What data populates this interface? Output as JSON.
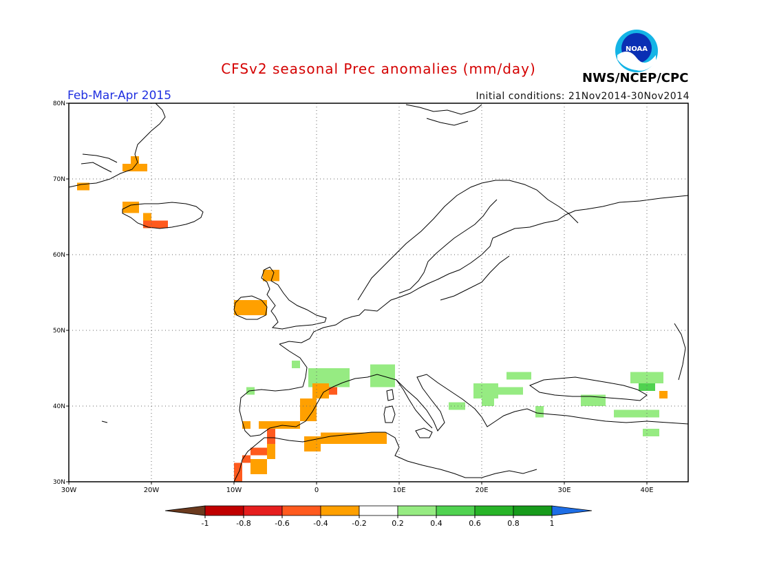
{
  "title": "CFSv2 seasonal Prec anomalies (mm/day)",
  "season": "Feb-Mar-Apr 2015",
  "initial_conditions": "Initial conditions: 21Nov2014-30Nov2014",
  "agency": "NWS/NCEP/CPC",
  "logo_text": "NOAA",
  "map": {
    "lon_range": [
      -30,
      45
    ],
    "lat_range": [
      30,
      80
    ],
    "x_ticks": [
      {
        "v": -30,
        "label": "30W"
      },
      {
        "v": -20,
        "label": "20W"
      },
      {
        "v": -10,
        "label": "10W"
      },
      {
        "v": 0,
        "label": "0"
      },
      {
        "v": 10,
        "label": "10E"
      },
      {
        "v": 20,
        "label": "20E"
      },
      {
        "v": 30,
        "label": "30E"
      },
      {
        "v": 40,
        "label": "40E"
      }
    ],
    "y_ticks": [
      {
        "v": 30,
        "label": "30N"
      },
      {
        "v": 40,
        "label": "40N"
      },
      {
        "v": 50,
        "label": "50N"
      },
      {
        "v": 60,
        "label": "60N"
      },
      {
        "v": 70,
        "label": "70N"
      },
      {
        "v": 80,
        "label": "80N"
      }
    ],
    "grid": true
  },
  "colorbar": {
    "labels": [
      "-1",
      "-0.8",
      "-0.6",
      "-0.4",
      "-0.2",
      "0.2",
      "0.4",
      "0.6",
      "0.8",
      "1"
    ],
    "colors": [
      "#6b3a1e",
      "#c00000",
      "#e61e1e",
      "#ff5a1e",
      "#ffa000",
      "#ffffff",
      "#96eb82",
      "#50d250",
      "#28b428",
      "#179b1b",
      "#1e6ee6"
    ]
  },
  "anomalies": [
    {
      "lon": -29,
      "lat": 68.5,
      "w": 1.5,
      "h": 1,
      "c": "#ffa000"
    },
    {
      "lon": -23.5,
      "lat": 71,
      "w": 3,
      "h": 1,
      "c": "#ffa000"
    },
    {
      "lon": -22.5,
      "lat": 72,
      "w": 1,
      "h": 1,
      "c": "#ffa000"
    },
    {
      "lon": -23.5,
      "lat": 65.5,
      "w": 2,
      "h": 1.5,
      "c": "#ffa000"
    },
    {
      "lon": -21,
      "lat": 64.5,
      "w": 1,
      "h": 1,
      "c": "#ffa000"
    },
    {
      "lon": -21,
      "lat": 63.5,
      "w": 3,
      "h": 1,
      "c": "#ff5a1e"
    },
    {
      "lon": -6.5,
      "lat": 56.5,
      "w": 2,
      "h": 1.5,
      "c": "#ffa000"
    },
    {
      "lon": -10,
      "lat": 52,
      "w": 4,
      "h": 2,
      "c": "#ffa000"
    },
    {
      "lon": -3,
      "lat": 45,
      "w": 1,
      "h": 1,
      "c": "#96eb82"
    },
    {
      "lon": -1,
      "lat": 42.5,
      "w": 5,
      "h": 2.5,
      "c": "#96eb82"
    },
    {
      "lon": 6.5,
      "lat": 42.5,
      "w": 3,
      "h": 3,
      "c": "#96eb82"
    },
    {
      "lon": -8.5,
      "lat": 41.5,
      "w": 1,
      "h": 1,
      "c": "#96eb82"
    },
    {
      "lon": -2,
      "lat": 38,
      "w": 2,
      "h": 3,
      "c": "#ffa000"
    },
    {
      "lon": -0.5,
      "lat": 41,
      "w": 2,
      "h": 2,
      "c": "#ffa000"
    },
    {
      "lon": 1.5,
      "lat": 41.5,
      "w": 1,
      "h": 1,
      "c": "#ff5a1e"
    },
    {
      "lon": -7,
      "lat": 37,
      "w": 5,
      "h": 1,
      "c": "#ffa000"
    },
    {
      "lon": -9,
      "lat": 37,
      "w": 1,
      "h": 1,
      "c": "#ffa000"
    },
    {
      "lon": -6,
      "lat": 35,
      "w": 1,
      "h": 2,
      "c": "#ff5a1e"
    },
    {
      "lon": -8,
      "lat": 33.5,
      "w": 2,
      "h": 1,
      "c": "#ff5a1e"
    },
    {
      "lon": -9,
      "lat": 32.5,
      "w": 1,
      "h": 1,
      "c": "#ff5a1e"
    },
    {
      "lon": -10,
      "lat": 30,
      "w": 1,
      "h": 2.5,
      "c": "#ff5a1e"
    },
    {
      "lon": -8,
      "lat": 31,
      "w": 2,
      "h": 2,
      "c": "#ffa000"
    },
    {
      "lon": -6,
      "lat": 33,
      "w": 1,
      "h": 2,
      "c": "#ffa000"
    },
    {
      "lon": -1.5,
      "lat": 34,
      "w": 2,
      "h": 2,
      "c": "#ffa000"
    },
    {
      "lon": 0.5,
      "lat": 35,
      "w": 8,
      "h": 1.5,
      "c": "#ffa000"
    },
    {
      "lon": 19,
      "lat": 41,
      "w": 3,
      "h": 2,
      "c": "#96eb82"
    },
    {
      "lon": 20,
      "lat": 40,
      "w": 1.5,
      "h": 1.5,
      "c": "#96eb82"
    },
    {
      "lon": 22,
      "lat": 41.5,
      "w": 3,
      "h": 1,
      "c": "#96eb82"
    },
    {
      "lon": 23,
      "lat": 43.5,
      "w": 3,
      "h": 1,
      "c": "#96eb82"
    },
    {
      "lon": 16,
      "lat": 39.5,
      "w": 2,
      "h": 1,
      "c": "#96eb82"
    },
    {
      "lon": 26.5,
      "lat": 38.5,
      "w": 1,
      "h": 1.5,
      "c": "#96eb82"
    },
    {
      "lon": 32,
      "lat": 40,
      "w": 3,
      "h": 1.5,
      "c": "#96eb82"
    },
    {
      "lon": 36,
      "lat": 38.5,
      "w": 5.5,
      "h": 1,
      "c": "#96eb82"
    },
    {
      "lon": 39.5,
      "lat": 36,
      "w": 2,
      "h": 1,
      "c": "#96eb82"
    },
    {
      "lon": 38,
      "lat": 43,
      "w": 4,
      "h": 1.5,
      "c": "#96eb82"
    },
    {
      "lon": 39,
      "lat": 42,
      "w": 2,
      "h": 1,
      "c": "#50d250"
    },
    {
      "lon": 41.5,
      "lat": 41,
      "w": 1,
      "h": 1,
      "c": "#ffa000"
    }
  ]
}
